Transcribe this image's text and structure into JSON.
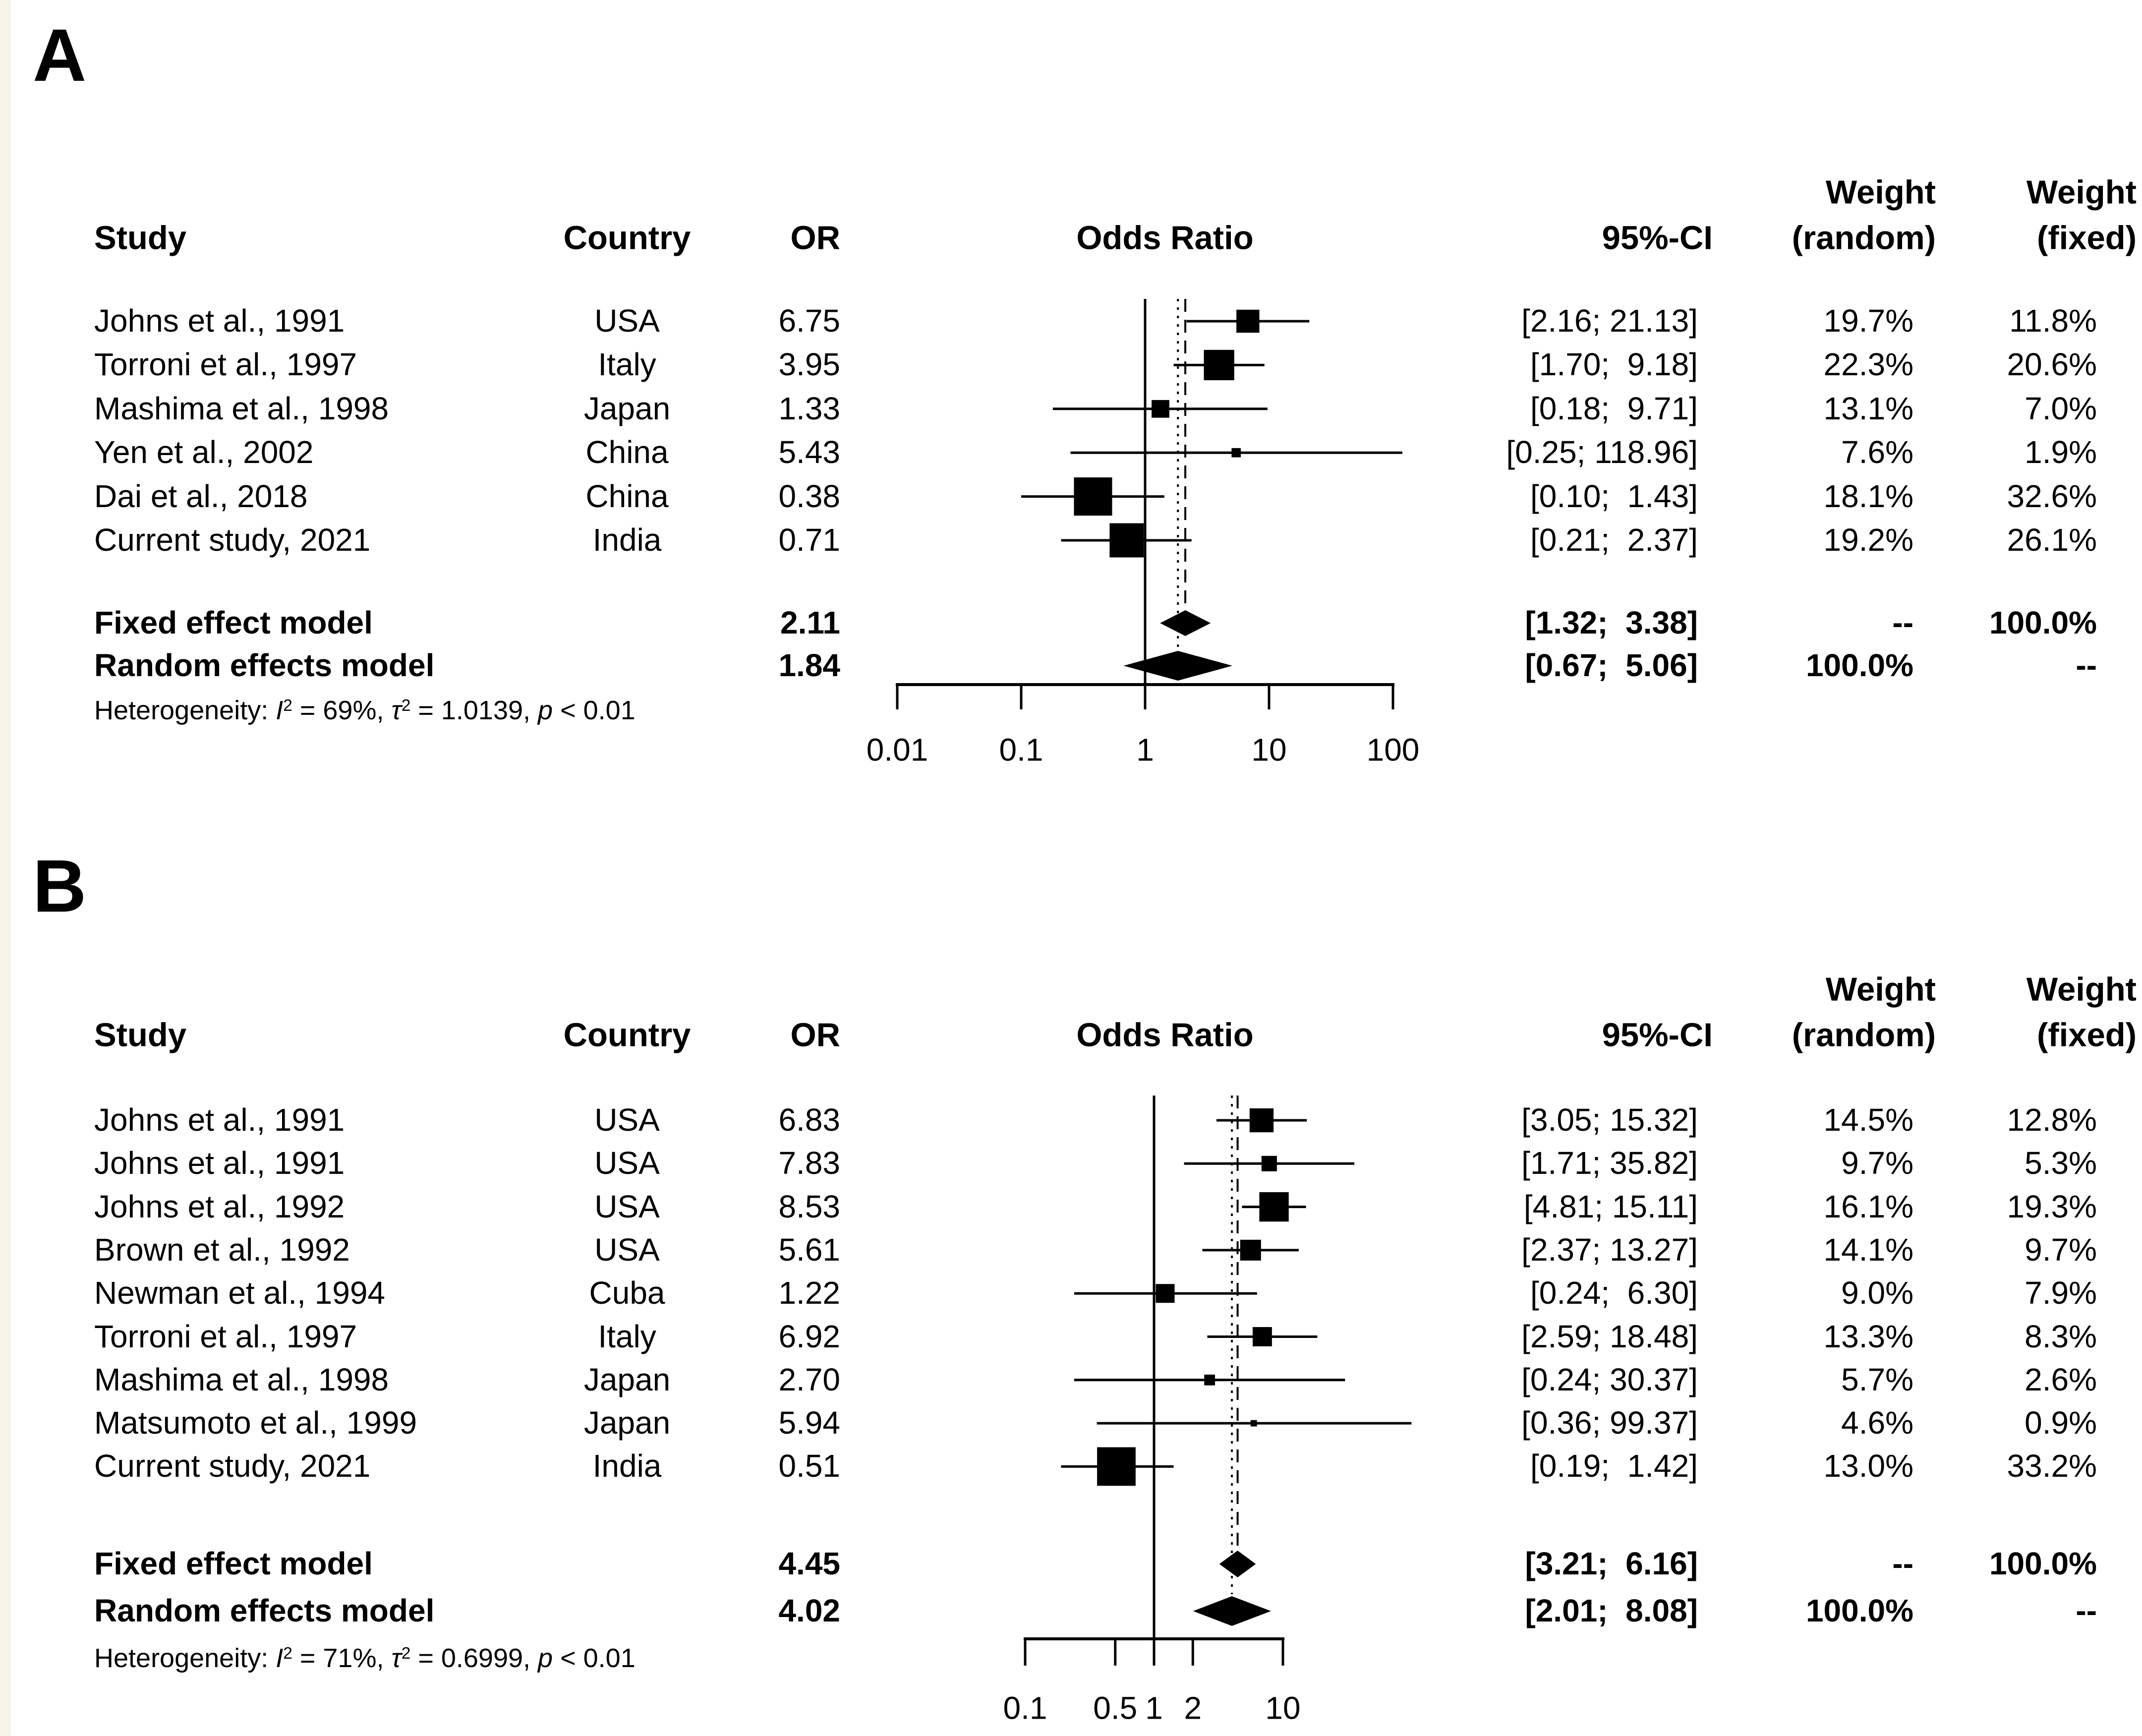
{
  "chart_data": [
    {
      "type": "forest",
      "panel_label": "A",
      "x_scale": "log",
      "effect_measure": "Odds Ratio",
      "columns": {
        "study": "Study",
        "country": "Country",
        "or": "OR",
        "plot": "Odds Ratio",
        "ci": "95%-CI",
        "weight_random_line1": "Weight",
        "weight_random_line2": "(random)",
        "weight_fixed_line1": "Weight",
        "weight_fixed_line2": "(fixed)"
      },
      "axis": {
        "ticks": [
          0.01,
          0.1,
          1,
          10,
          100
        ],
        "tick_labels": [
          "0.01",
          "0.1",
          "1",
          "10",
          "100"
        ]
      },
      "studies": [
        {
          "name": "Johns et al., 1991",
          "country": "USA",
          "or": "6.75",
          "or_value": 6.75,
          "ci_text": "[2.16; 21.13]",
          "ci": [
            2.16,
            21.13
          ],
          "weight_random": "19.7%",
          "weight_fixed": "11.8%"
        },
        {
          "name": "Torroni et al., 1997",
          "country": "Italy",
          "or": "3.95",
          "or_value": 3.95,
          "ci_text": "[1.70;  9.18]",
          "ci": [
            1.7,
            9.18
          ],
          "weight_random": "22.3%",
          "weight_fixed": "20.6%"
        },
        {
          "name": "Mashima et al., 1998",
          "country": "Japan",
          "or": "1.33",
          "or_value": 1.33,
          "ci_text": "[0.18;  9.71]",
          "ci": [
            0.18,
            9.71
          ],
          "weight_random": "13.1%",
          "weight_fixed": "7.0%"
        },
        {
          "name": "Yen et al., 2002",
          "country": "China",
          "or": "5.43",
          "or_value": 5.43,
          "ci_text": "[0.25; 118.96]",
          "ci": [
            0.25,
            118.96
          ],
          "weight_random": "7.6%",
          "weight_fixed": "1.9%"
        },
        {
          "name": "Dai et al., 2018",
          "country": "China",
          "or": "0.38",
          "or_value": 0.38,
          "ci_text": "[0.10;  1.43]",
          "ci": [
            0.1,
            1.43
          ],
          "weight_random": "18.1%",
          "weight_fixed": "32.6%"
        },
        {
          "name": "Current study, 2021",
          "country": "India",
          "or": "0.71",
          "or_value": 0.71,
          "ci_text": "[0.21;  2.37]",
          "ci": [
            0.21,
            2.37
          ],
          "weight_random": "19.2%",
          "weight_fixed": "26.1%"
        }
      ],
      "fixed_effect": {
        "label": "Fixed effect model",
        "or": "2.11",
        "or_value": 2.11,
        "ci_text": "[1.32;  3.38]",
        "ci": [
          1.32,
          3.38
        ],
        "weight_random": "--",
        "weight_fixed": "100.0%"
      },
      "random_effects": {
        "label": "Random effects model",
        "or": "1.84",
        "or_value": 1.84,
        "ci_text": "[0.67;  5.06]",
        "ci": [
          0.67,
          5.06
        ],
        "weight_random": "100.0%",
        "weight_fixed": "--"
      },
      "heterogeneity_segments": [
        {
          "t": "Heterogeneity: ",
          "s": "plain"
        },
        {
          "t": "I",
          "s": "it"
        },
        {
          "t": "2",
          "s": "sup"
        },
        {
          "t": " = 69%, ",
          "s": "plain"
        },
        {
          "t": "τ",
          "s": "it"
        },
        {
          "t": "2",
          "s": "sup"
        },
        {
          "t": " = 1.0139, ",
          "s": "plain"
        },
        {
          "t": "p",
          "s": "it"
        },
        {
          "t": " < 0.01",
          "s": "plain"
        }
      ]
    },
    {
      "type": "forest",
      "panel_label": "B",
      "x_scale": "log",
      "effect_measure": "Odds Ratio",
      "columns": {
        "study": "Study",
        "country": "Country",
        "or": "OR",
        "plot": "Odds Ratio",
        "ci": "95%-CI",
        "weight_random_line1": "Weight",
        "weight_random_line2": "(random)",
        "weight_fixed_line1": "Weight",
        "weight_fixed_line2": "(fixed)"
      },
      "axis": {
        "ticks": [
          0.1,
          0.5,
          1,
          2,
          10
        ],
        "tick_labels": [
          "0.1",
          "0.5",
          "1",
          "2",
          "10"
        ]
      },
      "studies": [
        {
          "name": "Johns et al., 1991",
          "country": "USA",
          "or": "6.83",
          "or_value": 6.83,
          "ci_text": "[3.05; 15.32]",
          "ci": [
            3.05,
            15.32
          ],
          "weight_random": "14.5%",
          "weight_fixed": "12.8%"
        },
        {
          "name": "Johns et al., 1991",
          "country": "USA",
          "or": "7.83",
          "or_value": 7.83,
          "ci_text": "[1.71; 35.82]",
          "ci": [
            1.71,
            35.82
          ],
          "weight_random": "9.7%",
          "weight_fixed": "5.3%"
        },
        {
          "name": "Johns et al., 1992",
          "country": "USA",
          "or": "8.53",
          "or_value": 8.53,
          "ci_text": "[4.81; 15.11]",
          "ci": [
            4.81,
            15.11
          ],
          "weight_random": "16.1%",
          "weight_fixed": "19.3%"
        },
        {
          "name": "Brown et al., 1992",
          "country": "USA",
          "or": "5.61",
          "or_value": 5.61,
          "ci_text": "[2.37; 13.27]",
          "ci": [
            2.37,
            13.27
          ],
          "weight_random": "14.1%",
          "weight_fixed": "9.7%"
        },
        {
          "name": "Newman et al., 1994",
          "country": "Cuba",
          "or": "1.22",
          "or_value": 1.22,
          "ci_text": "[0.24;  6.30]",
          "ci": [
            0.24,
            6.3
          ],
          "weight_random": "9.0%",
          "weight_fixed": "7.9%"
        },
        {
          "name": "Torroni et al., 1997",
          "country": "Italy",
          "or": "6.92",
          "or_value": 6.92,
          "ci_text": "[2.59; 18.48]",
          "ci": [
            2.59,
            18.48
          ],
          "weight_random": "13.3%",
          "weight_fixed": "8.3%"
        },
        {
          "name": "Mashima et al., 1998",
          "country": "Japan",
          "or": "2.70",
          "or_value": 2.7,
          "ci_text": "[0.24; 30.37]",
          "ci": [
            0.24,
            30.37
          ],
          "weight_random": "5.7%",
          "weight_fixed": "2.6%"
        },
        {
          "name": "Matsumoto et al., 1999",
          "country": "Japan",
          "or": "5.94",
          "or_value": 5.94,
          "ci_text": "[0.36; 99.37]",
          "ci": [
            0.36,
            99.37
          ],
          "weight_random": "4.6%",
          "weight_fixed": "0.9%"
        },
        {
          "name": "Current study, 2021",
          "country": "India",
          "or": "0.51",
          "or_value": 0.51,
          "ci_text": "[0.19;  1.42]",
          "ci": [
            0.19,
            1.42
          ],
          "weight_random": "13.0%",
          "weight_fixed": "33.2%"
        }
      ],
      "fixed_effect": {
        "label": "Fixed effect model",
        "or": "4.45",
        "or_value": 4.45,
        "ci_text": "[3.21;  6.16]",
        "ci": [
          3.21,
          6.16
        ],
        "weight_random": "--",
        "weight_fixed": "100.0%"
      },
      "random_effects": {
        "label": "Random effects model",
        "or": "4.02",
        "or_value": 4.02,
        "ci_text": "[2.01;  8.08]",
        "ci": [
          2.01,
          8.08
        ],
        "weight_random": "100.0%",
        "weight_fixed": "--"
      },
      "heterogeneity_segments": [
        {
          "t": "Heterogeneity: ",
          "s": "plain"
        },
        {
          "t": "I",
          "s": "it"
        },
        {
          "t": "2",
          "s": "sup"
        },
        {
          "t": " = 71%, ",
          "s": "plain"
        },
        {
          "t": "τ",
          "s": "it"
        },
        {
          "t": "2",
          "s": "sup"
        },
        {
          "t": " = 0.6999, ",
          "s": "plain"
        },
        {
          "t": "p",
          "s": "it"
        },
        {
          "t": " < 0.01",
          "s": "plain"
        }
      ]
    }
  ]
}
